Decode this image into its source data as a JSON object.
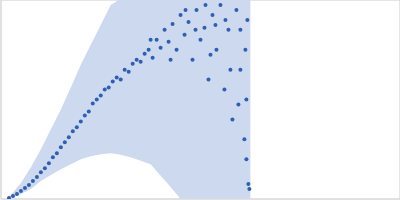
{
  "chart_data": {
    "type": "scatter",
    "xlim": [
      0,
      400
    ],
    "ylim": [
      0,
      200
    ],
    "xticks": [
      115
    ],
    "yticks": [
      100
    ],
    "grid": true,
    "tick_labels": false,
    "color": "#2f5fb3",
    "marker": "circle",
    "x": [
      8,
      12,
      16,
      20,
      24,
      28,
      32,
      36,
      40,
      44,
      48,
      52,
      56,
      60,
      64,
      68,
      72,
      76,
      80,
      84,
      88,
      92,
      96,
      100,
      104,
      108,
      112,
      116,
      120,
      124,
      128,
      132,
      136,
      140,
      144,
      148,
      152,
      156,
      160,
      164,
      168,
      172,
      176,
      180,
      184,
      188,
      192,
      196,
      200,
      204,
      208,
      212,
      216,
      220,
      224,
      228,
      232,
      236,
      240,
      244,
      248,
      150,
      170,
      185,
      205,
      210,
      225,
      230,
      240,
      246,
      246,
      247,
      249,
      245,
      238,
      215,
      195
    ],
    "y": [
      1,
      3,
      5,
      8,
      11,
      14,
      18,
      22,
      27,
      31,
      36,
      42,
      46,
      52,
      57,
      62,
      68,
      72,
      78,
      84,
      88,
      96,
      100,
      104,
      110,
      112,
      118,
      122,
      120,
      130,
      128,
      136,
      140,
      138,
      146,
      150,
      142,
      160,
      152,
      170,
      158,
      176,
      150,
      185,
      165,
      178,
      140,
      190,
      160,
      172,
      120,
      185,
      150,
      195,
      110,
      170,
      80,
      190,
      130,
      60,
      15,
      160,
      140,
      190,
      195,
      145,
      180,
      130,
      170,
      100,
      40,
      180,
      10,
      150,
      95,
      175,
      170
    ],
    "error_band": {
      "x": [
        5,
        10,
        20,
        30,
        40,
        50,
        60,
        70,
        80,
        90,
        100,
        110,
        118,
        130,
        150,
        170,
        180,
        200,
        220,
        240,
        250
      ],
      "low": [
        0,
        1,
        5,
        10,
        18,
        24,
        30,
        35,
        40,
        43,
        45,
        46,
        45,
        42,
        35,
        12,
        0,
        0,
        0,
        0,
        0
      ],
      "high": [
        0,
        4,
        16,
        32,
        50,
        70,
        90,
        112,
        135,
        155,
        175,
        195,
        200,
        200,
        200,
        200,
        200,
        200,
        200,
        200,
        200
      ],
      "color": "#cdd9ee"
    }
  }
}
